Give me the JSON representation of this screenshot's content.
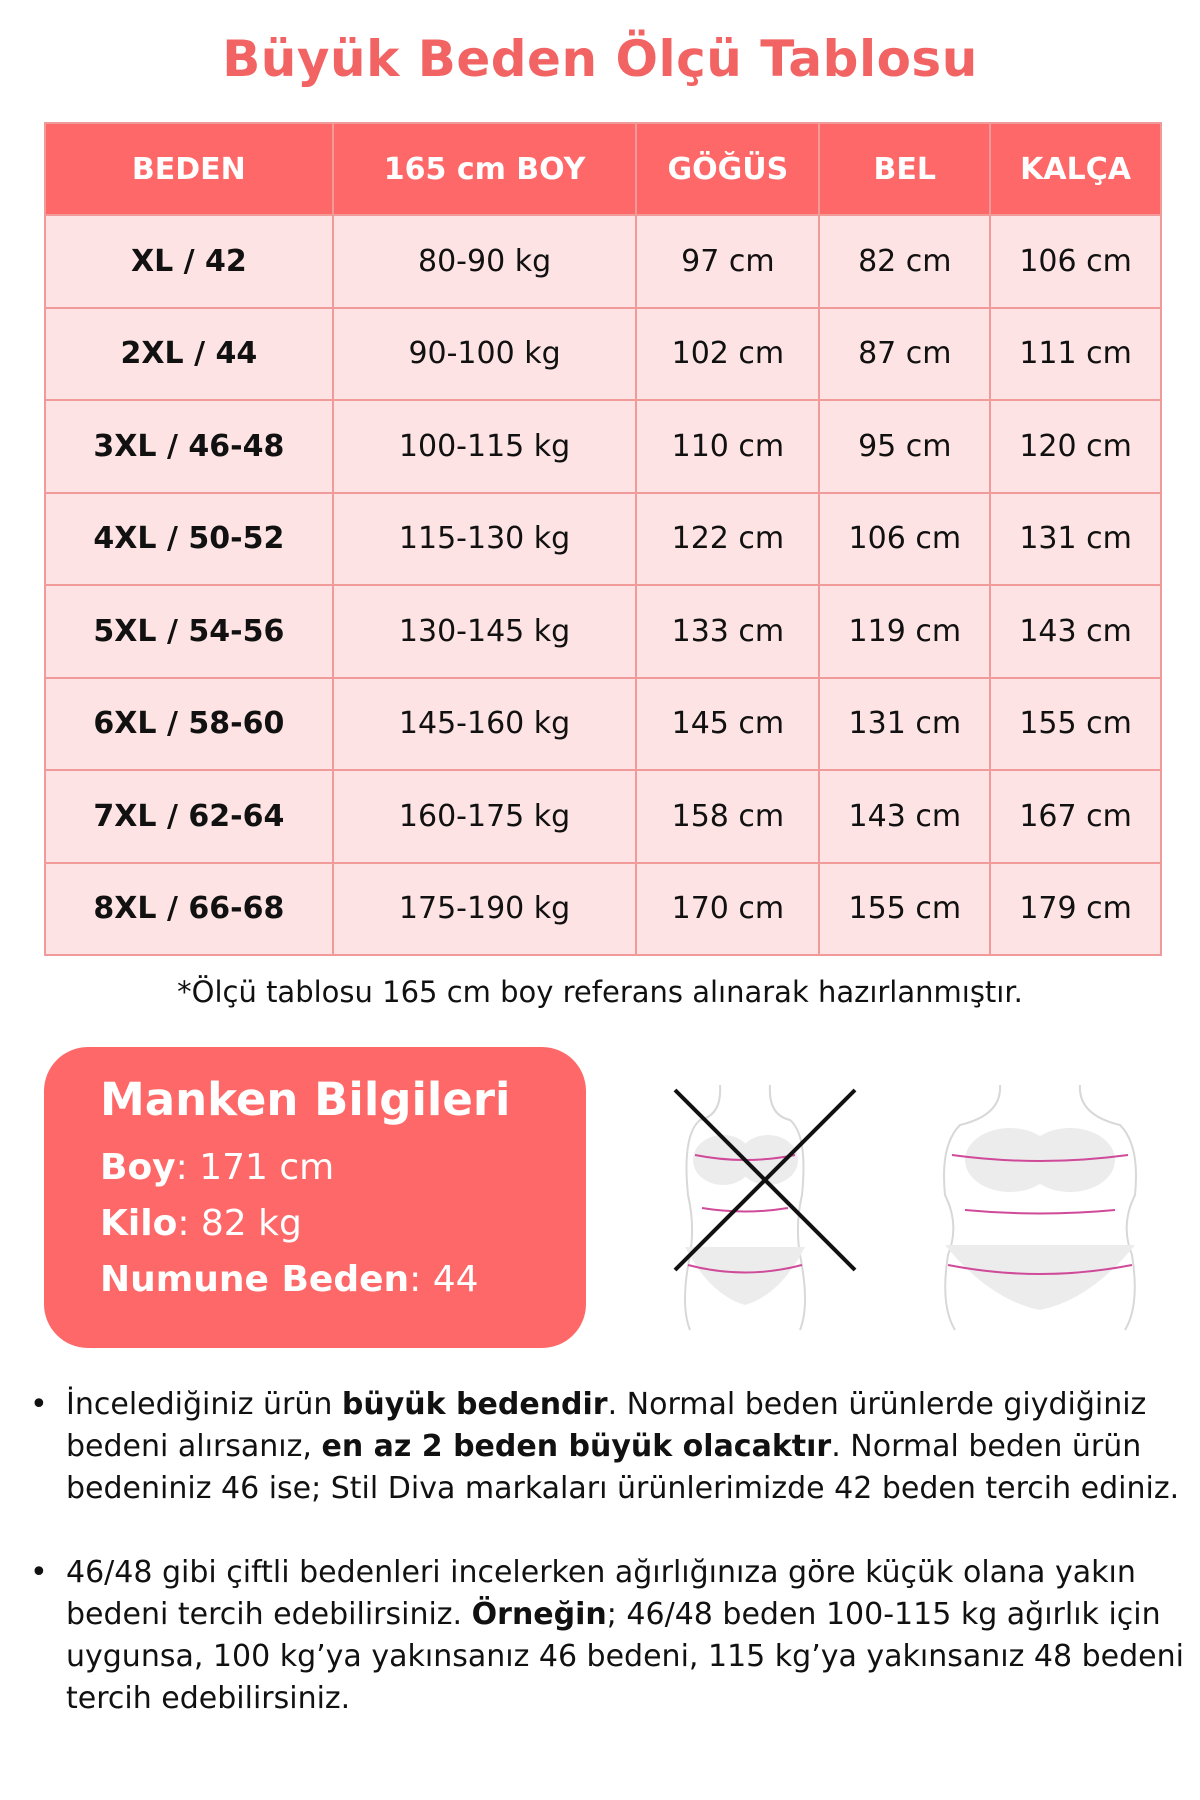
{
  "title": "Büyük Beden Ölçü Tablosu",
  "table": {
    "headers": [
      "BEDEN",
      "165 cm BOY",
      "GÖĞÜS",
      "BEL",
      "KALÇA"
    ],
    "rows": [
      [
        "XL / 42",
        "80-90 kg",
        "97 cm",
        "82 cm",
        "106 cm"
      ],
      [
        "2XL / 44",
        "90-100 kg",
        "102 cm",
        "87 cm",
        "111 cm"
      ],
      [
        "3XL / 46-48",
        "100-115 kg",
        "110 cm",
        "95 cm",
        "120 cm"
      ],
      [
        "4XL / 50-52",
        "115-130 kg",
        "122 cm",
        "106 cm",
        "131 cm"
      ],
      [
        "5XL / 54-56",
        "130-145 kg",
        "133 cm",
        "119 cm",
        "143 cm"
      ],
      [
        "6XL / 58-60",
        "145-160 kg",
        "145 cm",
        "131 cm",
        "155 cm"
      ],
      [
        "7XL / 62-64",
        "160-175 kg",
        "158 cm",
        "143 cm",
        "167 cm"
      ],
      [
        "8XL / 66-68",
        "175-190 kg",
        "170 cm",
        "155 cm",
        "179 cm"
      ]
    ]
  },
  "note": "*Ölçü tablosu 165 cm boy referans alınarak hazırlanmıştır.",
  "model": {
    "title": "Manken Bilgileri",
    "rows": [
      {
        "label": "Boy",
        "value": ": 171 cm"
      },
      {
        "label": "Kilo",
        "value": ": 82 kg"
      },
      {
        "label": "Numune Beden",
        "value": ": 44"
      }
    ]
  },
  "bullets": [
    {
      "parts": [
        {
          "t": "İncelediğiniz ürün ",
          "b": false
        },
        {
          "t": "büyük bedendir",
          "b": true
        },
        {
          "t": ". Normal beden ürünlerde giydiğiniz bedeni alırsanız, ",
          "b": false
        },
        {
          "t": "en az 2 beden büyük olacaktır",
          "b": true
        },
        {
          "t": ". Normal beden ürün bedeniniz 46 ise; Stil Diva markaları ürünlerimizde 42 beden tercih ediniz.",
          "b": false
        }
      ]
    },
    {
      "parts": [
        {
          "t": "46/48 gibi çiftli bedenleri incelerken ağırlığınıza göre küçük olana yakın bedeni tercih edebilirsiniz. ",
          "b": false
        },
        {
          "t": "Örneğin",
          "b": true
        },
        {
          "t": "; 46/48 beden 100-115 kg ağırlık için uygunsa, 100 kg’ya yakınsanız 46 bedeni, 115 kg’ya yakınsanız 48 bedeni tercih edebilirsiniz.",
          "b": false
        }
      ]
    }
  ],
  "colors": {
    "accent": "#ff6868",
    "title": "#f26464",
    "cell": "#fde3e3",
    "border": "#f19a9a"
  }
}
